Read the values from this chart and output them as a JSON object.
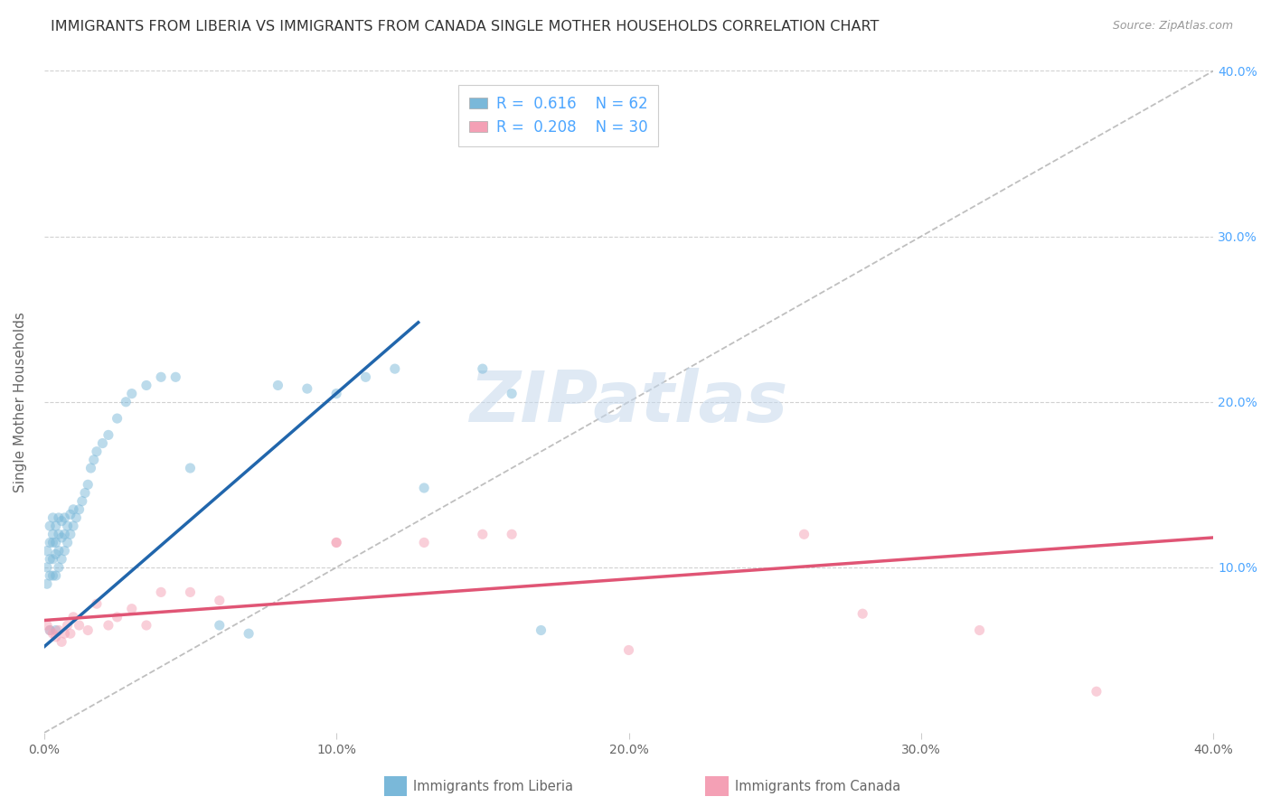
{
  "title": "IMMIGRANTS FROM LIBERIA VS IMMIGRANTS FROM CANADA SINGLE MOTHER HOUSEHOLDS CORRELATION CHART",
  "source": "Source: ZipAtlas.com",
  "ylabel": "Single Mother Households",
  "xlim": [
    0,
    0.4
  ],
  "ylim": [
    0,
    0.4
  ],
  "xticks": [
    0.0,
    0.1,
    0.2,
    0.3,
    0.4
  ],
  "yticks": [
    0.1,
    0.2,
    0.3,
    0.4
  ],
  "xticklabels": [
    "0.0%",
    "10.0%",
    "20.0%",
    "30.0%",
    "40.0%"
  ],
  "right_yticklabels": [
    "10.0%",
    "20.0%",
    "30.0%",
    "40.0%"
  ],
  "liberia_R": 0.616,
  "liberia_N": 62,
  "canada_R": 0.208,
  "canada_N": 30,
  "liberia_color": "#7ab8d9",
  "canada_color": "#f4a0b5",
  "liberia_line_color": "#2166ac",
  "canada_line_color": "#e05575",
  "ref_line_color": "#b0b0b0",
  "legend_label_liberia": "Immigrants from Liberia",
  "legend_label_canada": "Immigrants from Canada",
  "background_color": "#ffffff",
  "grid_color": "#cccccc",
  "title_color": "#333333",
  "axis_label_color": "#666666",
  "tick_color": "#666666",
  "right_tick_color": "#4da6ff",
  "liberia_x": [
    0.001,
    0.001,
    0.001,
    0.002,
    0.002,
    0.002,
    0.002,
    0.003,
    0.003,
    0.003,
    0.003,
    0.003,
    0.004,
    0.004,
    0.004,
    0.004,
    0.005,
    0.005,
    0.005,
    0.005,
    0.006,
    0.006,
    0.006,
    0.007,
    0.007,
    0.007,
    0.008,
    0.008,
    0.009,
    0.009,
    0.01,
    0.01,
    0.011,
    0.012,
    0.013,
    0.014,
    0.015,
    0.016,
    0.017,
    0.018,
    0.02,
    0.022,
    0.025,
    0.028,
    0.03,
    0.035,
    0.04,
    0.045,
    0.05,
    0.06,
    0.07,
    0.08,
    0.09,
    0.1,
    0.11,
    0.12,
    0.13,
    0.15,
    0.16,
    0.17,
    0.002,
    0.004
  ],
  "liberia_y": [
    0.09,
    0.1,
    0.11,
    0.095,
    0.105,
    0.115,
    0.125,
    0.095,
    0.105,
    0.115,
    0.12,
    0.13,
    0.095,
    0.108,
    0.115,
    0.125,
    0.1,
    0.11,
    0.12,
    0.13,
    0.105,
    0.118,
    0.128,
    0.11,
    0.12,
    0.13,
    0.115,
    0.125,
    0.12,
    0.132,
    0.125,
    0.135,
    0.13,
    0.135,
    0.14,
    0.145,
    0.15,
    0.16,
    0.165,
    0.17,
    0.175,
    0.18,
    0.19,
    0.2,
    0.205,
    0.21,
    0.215,
    0.215,
    0.16,
    0.065,
    0.06,
    0.21,
    0.208,
    0.205,
    0.215,
    0.22,
    0.148,
    0.22,
    0.205,
    0.062,
    0.062,
    0.062
  ],
  "canada_x": [
    0.001,
    0.002,
    0.003,
    0.004,
    0.005,
    0.006,
    0.007,
    0.008,
    0.009,
    0.01,
    0.012,
    0.015,
    0.018,
    0.022,
    0.025,
    0.03,
    0.035,
    0.04,
    0.05,
    0.06,
    0.1,
    0.13,
    0.15,
    0.2,
    0.28,
    0.32,
    0.36,
    0.1,
    0.16,
    0.26
  ],
  "canada_y": [
    0.065,
    0.062,
    0.06,
    0.058,
    0.062,
    0.055,
    0.06,
    0.065,
    0.06,
    0.07,
    0.065,
    0.062,
    0.078,
    0.065,
    0.07,
    0.075,
    0.065,
    0.085,
    0.085,
    0.08,
    0.115,
    0.115,
    0.12,
    0.05,
    0.072,
    0.062,
    0.025,
    0.115,
    0.12,
    0.12
  ],
  "liberia_trend_x": [
    0.0,
    0.128
  ],
  "liberia_trend_y": [
    0.052,
    0.248
  ],
  "canada_trend_x": [
    0.0,
    0.4
  ],
  "canada_trend_y": [
    0.068,
    0.118
  ],
  "ref_line_x": [
    0.0,
    0.4
  ],
  "ref_line_y": [
    0.0,
    0.4
  ],
  "watermark": "ZIPatlas",
  "marker_size": 65,
  "marker_alpha": 0.5,
  "title_fontsize": 11.5,
  "label_fontsize": 11,
  "tick_fontsize": 10,
  "legend_fontsize": 12
}
